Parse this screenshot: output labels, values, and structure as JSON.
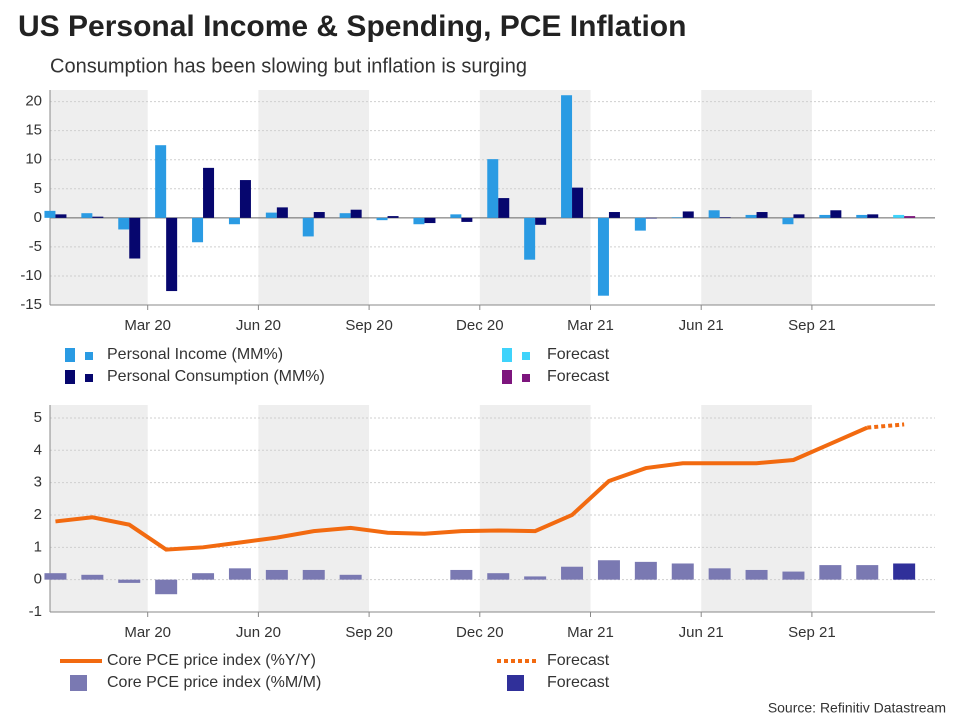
{
  "title": "US Personal Income & Spending, PCE Inflation",
  "subtitle": "Consumption has been slowing but inflation is surging",
  "source": "Source: Refinitiv Datastream",
  "chart_data": [
    {
      "type": "bar",
      "categories": [
        null,
        null,
        "Mar 20",
        null,
        null,
        "Jun 20",
        null,
        null,
        "Sep 20",
        null,
        null,
        "Dec 20",
        null,
        null,
        "Mar 21",
        null,
        null,
        "Jun 21",
        null,
        null,
        "Sep 21",
        null,
        null,
        null
      ],
      "series": [
        {
          "name": "Personal Income (MM%)",
          "color": "#2a9be3",
          "values": [
            1.2,
            0.8,
            -2.0,
            12.5,
            -4.2,
            -1.1,
            0.9,
            -3.2,
            0.8,
            -0.4,
            -1.1,
            0.6,
            10.1,
            -7.2,
            21.1,
            -13.4,
            -2.2,
            0.1,
            1.3,
            0.5,
            -1.1,
            0.5,
            0.5,
            null
          ]
        },
        {
          "name": "Personal Consumption (MM%)",
          "color": "#06066e",
          "values": [
            0.6,
            0.2,
            -7.0,
            -12.6,
            8.6,
            6.5,
            1.8,
            1.0,
            1.4,
            0.3,
            -0.9,
            -0.7,
            3.4,
            -1.2,
            5.2,
            1.0,
            -0.1,
            1.1,
            0.1,
            1.0,
            0.6,
            1.3,
            0.6,
            null
          ]
        },
        {
          "name": "Forecast",
          "color": "#3fd3fb",
          "values": [
            null,
            null,
            null,
            null,
            null,
            null,
            null,
            null,
            null,
            null,
            null,
            null,
            null,
            null,
            null,
            null,
            null,
            null,
            null,
            null,
            null,
            null,
            null,
            0.5
          ]
        },
        {
          "name": "Forecast",
          "color": "#7d157d",
          "values": [
            null,
            null,
            null,
            null,
            null,
            null,
            null,
            null,
            null,
            null,
            null,
            null,
            null,
            null,
            null,
            null,
            null,
            null,
            null,
            null,
            null,
            null,
            null,
            0.3
          ]
        }
      ],
      "ylim": [
        -15,
        22
      ],
      "yticks": [
        -15,
        -10,
        -5,
        0,
        5,
        10,
        15,
        20
      ],
      "grid": true
    },
    {
      "type": "line",
      "categories": [
        null,
        null,
        "Mar 20",
        null,
        null,
        "Jun 20",
        null,
        null,
        "Sep 20",
        null,
        null,
        "Dec 20",
        null,
        null,
        "Mar 21",
        null,
        null,
        "Jun 21",
        null,
        null,
        "Sep 21",
        null,
        null,
        null
      ],
      "series": [
        {
          "name": "Core PCE price index (%Y/Y)",
          "type": "line",
          "color": "#f26a10",
          "values": [
            1.8,
            1.93,
            1.7,
            0.93,
            1.0,
            1.15,
            1.3,
            1.5,
            1.6,
            1.45,
            1.42,
            1.5,
            1.52,
            1.5,
            2.0,
            3.05,
            3.45,
            3.6,
            3.6,
            3.6,
            3.7,
            4.2,
            4.7,
            null
          ]
        },
        {
          "name": "Forecast",
          "type": "line",
          "style": "dotted",
          "color": "#f26a10",
          "values": [
            null,
            null,
            null,
            null,
            null,
            null,
            null,
            null,
            null,
            null,
            null,
            null,
            null,
            null,
            null,
            null,
            null,
            null,
            null,
            null,
            null,
            null,
            4.7,
            4.8
          ]
        },
        {
          "name": "Core PCE price index (%M/M)",
          "type": "bar",
          "color": "#7a79b2",
          "values": [
            0.2,
            0.15,
            -0.1,
            -0.45,
            0.2,
            0.35,
            0.3,
            0.3,
            0.15,
            0.0,
            0.0,
            0.3,
            0.2,
            0.1,
            0.4,
            0.6,
            0.55,
            0.5,
            0.35,
            0.3,
            0.25,
            0.45,
            0.45,
            null
          ]
        },
        {
          "name": "Forecast",
          "type": "bar",
          "color": "#30309a",
          "values": [
            null,
            null,
            null,
            null,
            null,
            null,
            null,
            null,
            null,
            null,
            null,
            null,
            null,
            null,
            null,
            null,
            null,
            null,
            null,
            null,
            null,
            null,
            null,
            0.5
          ]
        }
      ],
      "ylim": [
        -1,
        5.4
      ],
      "yticks": [
        -1,
        0,
        1,
        2,
        3,
        4,
        5
      ],
      "grid": true
    }
  ]
}
